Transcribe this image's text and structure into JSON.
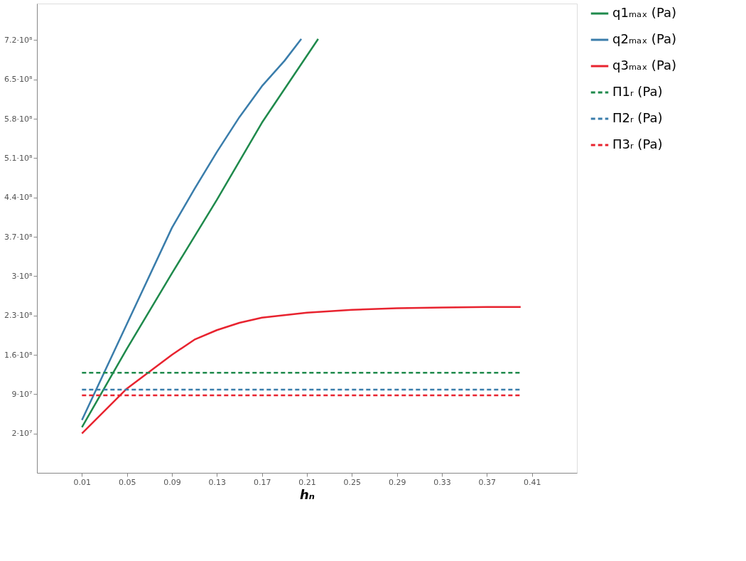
{
  "chart_data": {
    "type": "line",
    "xlabel": "hₙ",
    "xlim": [
      -0.03,
      0.45
    ],
    "xticks": [
      0.01,
      0.05,
      0.09,
      0.13,
      0.17,
      0.21,
      0.25,
      0.29,
      0.33,
      0.37,
      0.41
    ],
    "ylim": [
      -50000000,
      785000000
    ],
    "yticks": [
      {
        "value": 20000000,
        "label": "2·10⁷"
      },
      {
        "value": 90000000,
        "label": "9·10⁷"
      },
      {
        "value": 160000000,
        "label": "1.6·10⁸"
      },
      {
        "value": 230000000,
        "label": "2.3·10⁸"
      },
      {
        "value": 300000000,
        "label": "3·10⁸"
      },
      {
        "value": 370000000,
        "label": "3.7·10⁸"
      },
      {
        "value": 440000000,
        "label": "4.4·10⁸"
      },
      {
        "value": 510000000,
        "label": "5.1·10⁸"
      },
      {
        "value": 580000000,
        "label": "5.8·10⁸"
      },
      {
        "value": 650000000,
        "label": "6.5·10⁸"
      },
      {
        "value": 720000000,
        "label": "7.2·10⁸"
      }
    ],
    "grid": false,
    "legend": "right",
    "marker": "none",
    "series": [
      {
        "name": "q1ₘₐₓ (Pa)",
        "color": "#1f8a4c",
        "line_style": "solid",
        "x": [
          0.01,
          0.05,
          0.09,
          0.13,
          0.17,
          0.22
        ],
        "values": [
          31000000,
          171000000,
          305000000,
          436000000,
          573000000,
          722000000
        ]
      },
      {
        "name": "q2ₘₐₓ (Pa)",
        "color": "#3a7dab",
        "line_style": "solid",
        "x": [
          0.01,
          0.05,
          0.09,
          0.11,
          0.13,
          0.15,
          0.17,
          0.19,
          0.205
        ],
        "values": [
          44000000,
          215000000,
          386000000,
          455000000,
          521000000,
          583000000,
          638000000,
          683000000,
          722000000
        ]
      },
      {
        "name": "q3ₘₐₓ (Pa)",
        "color": "#e8232f",
        "line_style": "solid",
        "x": [
          0.01,
          0.05,
          0.09,
          0.11,
          0.13,
          0.15,
          0.17,
          0.21,
          0.25,
          0.29,
          0.33,
          0.37,
          0.4
        ],
        "values": [
          20000000,
          100000000,
          160000000,
          187000000,
          204000000,
          217000000,
          226000000,
          235000000,
          240000000,
          243000000,
          244000000,
          245000000,
          245000000
        ]
      },
      {
        "name": "П1ᵣ (Pa)",
        "color": "#1f8a4c",
        "line_style": "dashed",
        "x": [
          0.01,
          0.4
        ],
        "values": [
          128000000,
          128000000
        ]
      },
      {
        "name": "П2ᵣ (Pa)",
        "color": "#3a7dab",
        "line_style": "dashed",
        "x": [
          0.01,
          0.4
        ],
        "values": [
          98000000,
          98000000
        ]
      },
      {
        "name": "П3ᵣ (Pa)",
        "color": "#e8232f",
        "line_style": "dashed",
        "x": [
          0.01,
          0.4
        ],
        "values": [
          88000000,
          88000000
        ]
      }
    ]
  }
}
